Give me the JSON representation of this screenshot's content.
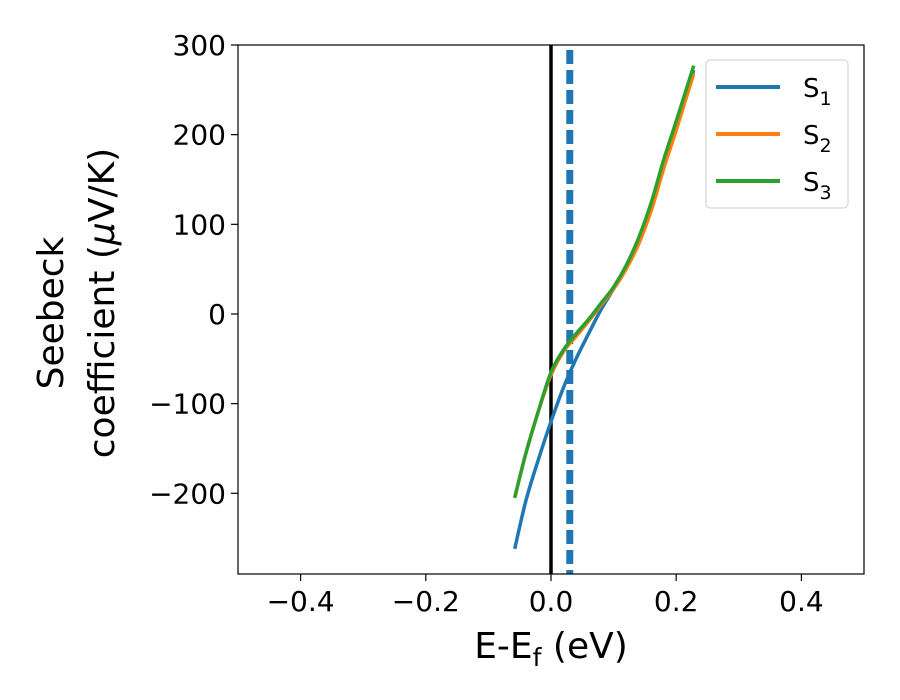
{
  "chart_data": {
    "type": "line",
    "xlabel": "E-E",
    "xlabel_sub": "f",
    "xlabel_unit": " (eV)",
    "ylabel_line1": "Seebeck",
    "ylabel_line2": "coefficient  (",
    "ylabel_mu": "μ",
    "ylabel_unit": "V/K)",
    "xlim": [
      -0.5,
      0.5
    ],
    "ylim": [
      -290,
      300
    ],
    "xticks": [
      -0.4,
      -0.2,
      0.0,
      0.2,
      0.4
    ],
    "xtick_labels": [
      "−0.4",
      "−0.2",
      "0.0",
      "0.2",
      "0.4"
    ],
    "yticks": [
      -200,
      -100,
      0,
      100,
      200,
      300
    ],
    "ytick_labels": [
      "−200",
      "−100",
      "0",
      "100",
      "200",
      "300"
    ],
    "legend_position": "upper-right",
    "grid": false,
    "series": [
      {
        "name": "S",
        "sub": "1",
        "color": "#1f77b4",
        "x": [
          -0.058,
          -0.04,
          -0.02,
          0.0,
          0.02,
          0.04,
          0.06,
          0.08,
          0.1,
          0.12,
          0.14,
          0.16,
          0.18,
          0.2,
          0.228
        ],
        "y": [
          -262,
          -208,
          -162,
          -120,
          -82,
          -50,
          -22,
          5,
          28,
          52,
          80,
          118,
          168,
          210,
          272
        ]
      },
      {
        "name": "S",
        "sub": "2",
        "color": "#ff7f0e",
        "x": [
          -0.058,
          -0.04,
          -0.02,
          0.0,
          0.02,
          0.04,
          0.06,
          0.08,
          0.1,
          0.12,
          0.14,
          0.16,
          0.18,
          0.2,
          0.228
        ],
        "y": [
          -205,
          -155,
          -108,
          -68,
          -42,
          -25,
          -8,
          10,
          28,
          50,
          78,
          115,
          162,
          205,
          268
        ]
      },
      {
        "name": "S",
        "sub": "3",
        "color": "#2ca02c",
        "x": [
          -0.058,
          -0.04,
          -0.02,
          0.0,
          0.02,
          0.04,
          0.06,
          0.08,
          0.1,
          0.12,
          0.14,
          0.16,
          0.18,
          0.2,
          0.228
        ],
        "y": [
          -205,
          -155,
          -108,
          -65,
          -40,
          -22,
          -6,
          12,
          30,
          54,
          85,
          124,
          172,
          215,
          277
        ]
      }
    ],
    "vlines": [
      {
        "x": 0.0,
        "color": "#000000",
        "style": "solid"
      },
      {
        "x": 0.03,
        "color": "#1f77b4",
        "style": "dashed"
      }
    ]
  }
}
